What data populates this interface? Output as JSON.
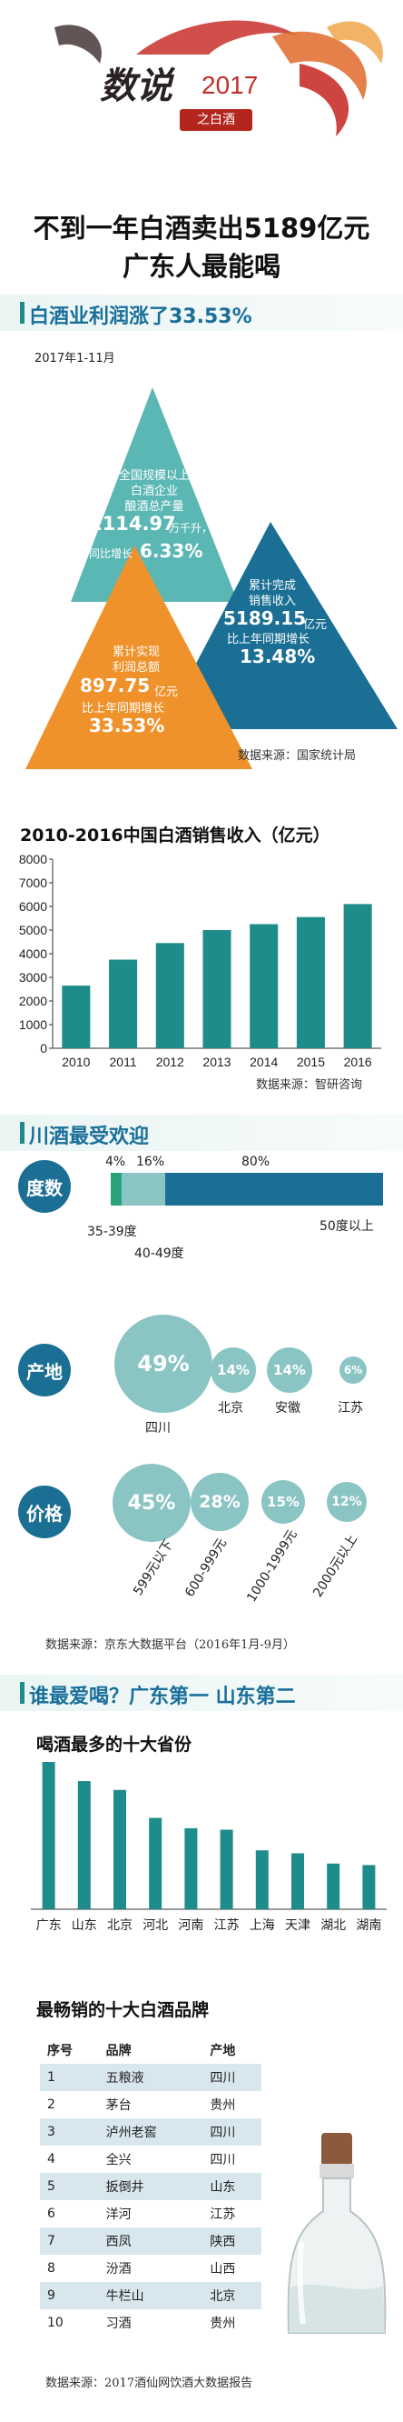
{
  "header": {
    "title_main": "数说",
    "title_year": "2017",
    "title_sub": "之白酒",
    "headline_1": "不到一年白酒卖出5189亿元",
    "headline_2": "广东人最能喝"
  },
  "section1": {
    "title": "白酒业利润涨了33.53%",
    "period": "2017年1-11月",
    "tri1": {
      "l1": "全国规模以上",
      "l2": "白酒企业",
      "l3": "酿酒总产量",
      "value": "1114.97",
      "unit": "万千升，",
      "growth_label": "同比增长",
      "growth": "6.33%"
    },
    "tri2": {
      "l1": "累计完成",
      "l2": "销售收入",
      "value": "5189.15",
      "unit": "亿元",
      "growth_label": "比上年同期增长",
      "growth": "13.48%"
    },
    "tri3": {
      "l1": "累计实现",
      "l2": "利润总额",
      "value": "897.75",
      "unit": "亿元",
      "growth_label": "比上年同期增长",
      "growth": "33.53%"
    },
    "source": "数据来源：国家统计局"
  },
  "section2": {
    "source": "数据来源：智研咨询"
  },
  "section3": {
    "title": "川酒最受欢迎",
    "degree_tag": "度数",
    "degree_pcts": [
      "4%",
      "16%",
      "80%"
    ],
    "degree_labels": [
      "35-39度",
      "40-49度",
      "50度以上"
    ],
    "origin_tag": "产地",
    "origins": [
      {
        "pct": "49%",
        "name": "四川"
      },
      {
        "pct": "14%",
        "name": "北京"
      },
      {
        "pct": "14%",
        "name": "安徽"
      },
      {
        "pct": "6%",
        "name": "江苏"
      }
    ],
    "price_tag": "价格",
    "prices": [
      {
        "pct": "45%",
        "name": "599元以下"
      },
      {
        "pct": "28%",
        "name": "600-999元"
      },
      {
        "pct": "15%",
        "name": "1000-1999元"
      },
      {
        "pct": "12%",
        "name": "2000元以上"
      }
    ],
    "source": "数据来源：京东大数据平台（2016年1月-9月）"
  },
  "section4": {
    "title": "谁最爱喝？广东第一 山东第二",
    "chart_title": "喝酒最多的十大省份",
    "table_title": "最畅销的十大白酒品牌",
    "table_headers": [
      "序号",
      "品牌",
      "产地"
    ],
    "brands": [
      [
        "1",
        "五粮液",
        "四川"
      ],
      [
        "2",
        "茅台",
        "贵州"
      ],
      [
        "3",
        "泸州老窖",
        "四川"
      ],
      [
        "4",
        "全兴",
        "四川"
      ],
      [
        "5",
        "扳倒井",
        "山东"
      ],
      [
        "6",
        "洋河",
        "江苏"
      ],
      [
        "7",
        "西凤",
        "陕西"
      ],
      [
        "8",
        "汾酒",
        "山西"
      ],
      [
        "9",
        "牛栏山",
        "北京"
      ],
      [
        "10",
        "习酒",
        "贵州"
      ]
    ],
    "source": "数据来源：2017酒仙网饮酒大数据报告"
  },
  "colors": {
    "teal": "#1d8c8a",
    "blue": "#1b6f94",
    "orange": "#f0922b",
    "light_teal": "#8ac5c4"
  },
  "chart_data": [
    {
      "type": "bar",
      "title": "2010-2016中国白酒销售收入（亿元）",
      "categories": [
        "2010",
        "2011",
        "2012",
        "2013",
        "2014",
        "2015",
        "2016"
      ],
      "values": [
        2650,
        3750,
        4450,
        5000,
        5250,
        5550,
        6100
      ],
      "ylim": [
        0,
        8000
      ],
      "yticks": [
        0,
        1000,
        2000,
        3000,
        4000,
        5000,
        6000,
        7000,
        8000
      ],
      "grid": false,
      "legend": "none"
    },
    {
      "type": "bar",
      "title": "喝酒最多的十大省份",
      "categories": [
        "广东",
        "山东",
        "北京",
        "河北",
        "河南",
        "江苏",
        "上海",
        "天津",
        "湖北",
        "湖南"
      ],
      "values": [
        100,
        87,
        81,
        62,
        55,
        54,
        40,
        38,
        31,
        30
      ],
      "legend": "none"
    }
  ]
}
